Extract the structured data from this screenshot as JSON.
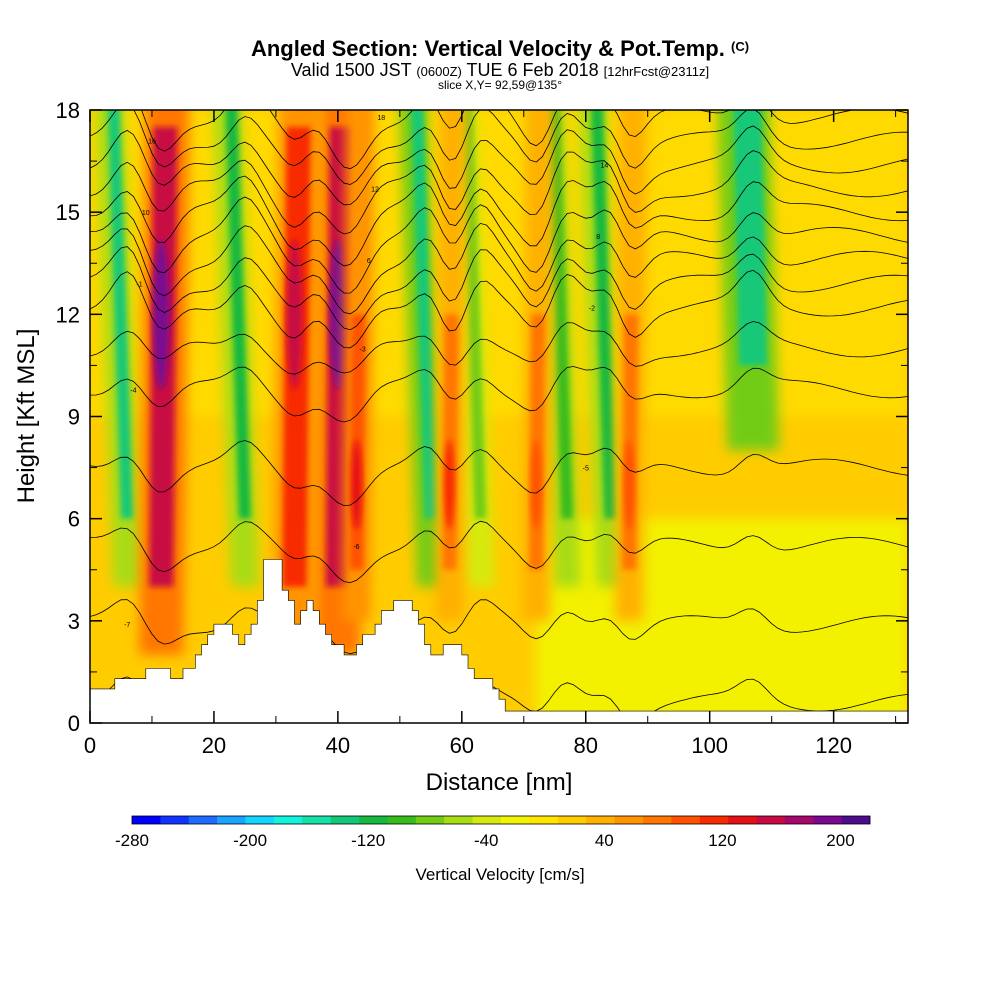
{
  "title": {
    "main": "Angled Section: Vertical Velocity & Pot.Temp.",
    "main_unit": "(C)",
    "valid_prefix": "Valid 1500 JST",
    "valid_utc": "(0600Z)",
    "valid_date": "TUE 6 Feb 2018",
    "forecast": "[12hrFcst@2311z]",
    "slice": "slice X,Y= 92,59@135°"
  },
  "chart_data": {
    "type": "heatmap",
    "xlabel": "Distance [nm]",
    "ylabel": "Height [Kft MSL]",
    "xlim": [
      0,
      132
    ],
    "ylim": [
      0,
      18
    ],
    "x_ticks": [
      "0",
      "20",
      "40",
      "60",
      "80",
      "100",
      "120"
    ],
    "y_ticks": [
      "0",
      "3",
      "6",
      "9",
      "12",
      "15",
      "18"
    ],
    "colorbar": {
      "label": "Vertical Velocity [cm/s]",
      "tick_labels": [
        "-280",
        "-200",
        "-120",
        "-40",
        "40",
        "120",
        "200"
      ],
      "range": [
        -280,
        220
      ],
      "colors": [
        "#0000ff",
        "#1034ff",
        "#1e6cff",
        "#18a4ff",
        "#14d4ff",
        "#12f4dc",
        "#14e0a8",
        "#12c878",
        "#16b840",
        "#38bc1c",
        "#72cc14",
        "#a8dc14",
        "#d6ea10",
        "#f2f406",
        "#ffe600",
        "#ffcc00",
        "#ffb000",
        "#ff9400",
        "#ff7600",
        "#ff5200",
        "#f82a00",
        "#e61018",
        "#c80a42",
        "#a4086c",
        "#7a0890",
        "#4c0c8c"
      ]
    },
    "updraft_columns": [
      {
        "x": 11.5,
        "peak_cm_s": 200
      },
      {
        "x": 33,
        "peak_cm_s": 160
      },
      {
        "x": 40,
        "peak_cm_s": 200
      },
      {
        "x": 43,
        "peak_cm_s": 130
      },
      {
        "x": 58,
        "peak_cm_s": 110
      },
      {
        "x": 72,
        "peak_cm_s": 100
      },
      {
        "x": 87,
        "peak_cm_s": 90
      }
    ],
    "downdraft_columns": [
      {
        "x": 6,
        "peak_cm_s": -150
      },
      {
        "x": 25,
        "peak_cm_s": -130
      },
      {
        "x": 55,
        "peak_cm_s": -160
      },
      {
        "x": 63,
        "peak_cm_s": -100
      },
      {
        "x": 77,
        "peak_cm_s": -120
      },
      {
        "x": 84,
        "peak_cm_s": -140
      },
      {
        "x": 107,
        "peak_cm_s": -170
      }
    ],
    "theta_contour_labels": [
      "-7",
      "-6",
      "-5",
      "-4",
      "-3",
      "-2",
      "-1",
      "6",
      "8",
      "10",
      "12",
      "14",
      "16",
      "18"
    ],
    "terrain_kft": [
      [
        0,
        1
      ],
      [
        4,
        1
      ],
      [
        4,
        1.3
      ],
      [
        9,
        1.3
      ],
      [
        9,
        1.6
      ],
      [
        13,
        1.6
      ],
      [
        13,
        1.3
      ],
      [
        15,
        1.3
      ],
      [
        15,
        1.6
      ],
      [
        17,
        1.6
      ],
      [
        17,
        2
      ],
      [
        18,
        2
      ],
      [
        18,
        2.3
      ],
      [
        19,
        2.3
      ],
      [
        19,
        2.6
      ],
      [
        20,
        2.6
      ],
      [
        20,
        2.9
      ],
      [
        23,
        2.9
      ],
      [
        23,
        2.6
      ],
      [
        24,
        2.6
      ],
      [
        24,
        2.3
      ],
      [
        25,
        2.3
      ],
      [
        25,
        2.6
      ],
      [
        26,
        2.6
      ],
      [
        26,
        2.9
      ],
      [
        27,
        2.9
      ],
      [
        27,
        3.6
      ],
      [
        28,
        3.6
      ],
      [
        28,
        4.8
      ],
      [
        31,
        4.8
      ],
      [
        31,
        3.9
      ],
      [
        32,
        3.9
      ],
      [
        32,
        3.6
      ],
      [
        33,
        3.6
      ],
      [
        33,
        2.9
      ],
      [
        34,
        2.9
      ],
      [
        34,
        3.3
      ],
      [
        35,
        3.3
      ],
      [
        35,
        3.6
      ],
      [
        36,
        3.6
      ],
      [
        36,
        3.3
      ],
      [
        37,
        3.3
      ],
      [
        37,
        2.9
      ],
      [
        38,
        2.9
      ],
      [
        38,
        2.6
      ],
      [
        39,
        2.6
      ],
      [
        39,
        2.3
      ],
      [
        41,
        2.3
      ],
      [
        41,
        2
      ],
      [
        43,
        2
      ],
      [
        43,
        2.3
      ],
      [
        44,
        2.3
      ],
      [
        44,
        2.6
      ],
      [
        46,
        2.6
      ],
      [
        46,
        2.9
      ],
      [
        47,
        2.9
      ],
      [
        47,
        3.3
      ],
      [
        49,
        3.3
      ],
      [
        49,
        3.6
      ],
      [
        52,
        3.6
      ],
      [
        52,
        3.3
      ],
      [
        53,
        3.3
      ],
      [
        53,
        2.9
      ],
      [
        54,
        2.9
      ],
      [
        54,
        2.3
      ],
      [
        55,
        2.3
      ],
      [
        55,
        2
      ],
      [
        57,
        2
      ],
      [
        57,
        2.3
      ],
      [
        60,
        2.3
      ],
      [
        60,
        2
      ],
      [
        61,
        2
      ],
      [
        61,
        1.6
      ],
      [
        62,
        1.6
      ],
      [
        62,
        1.3
      ],
      [
        65,
        1.3
      ],
      [
        65,
        1
      ],
      [
        66,
        1
      ],
      [
        66,
        0.7
      ],
      [
        67,
        0.7
      ],
      [
        67,
        0.35
      ],
      [
        132,
        0.35
      ],
      [
        132,
        0
      ],
      [
        0,
        0
      ]
    ]
  }
}
